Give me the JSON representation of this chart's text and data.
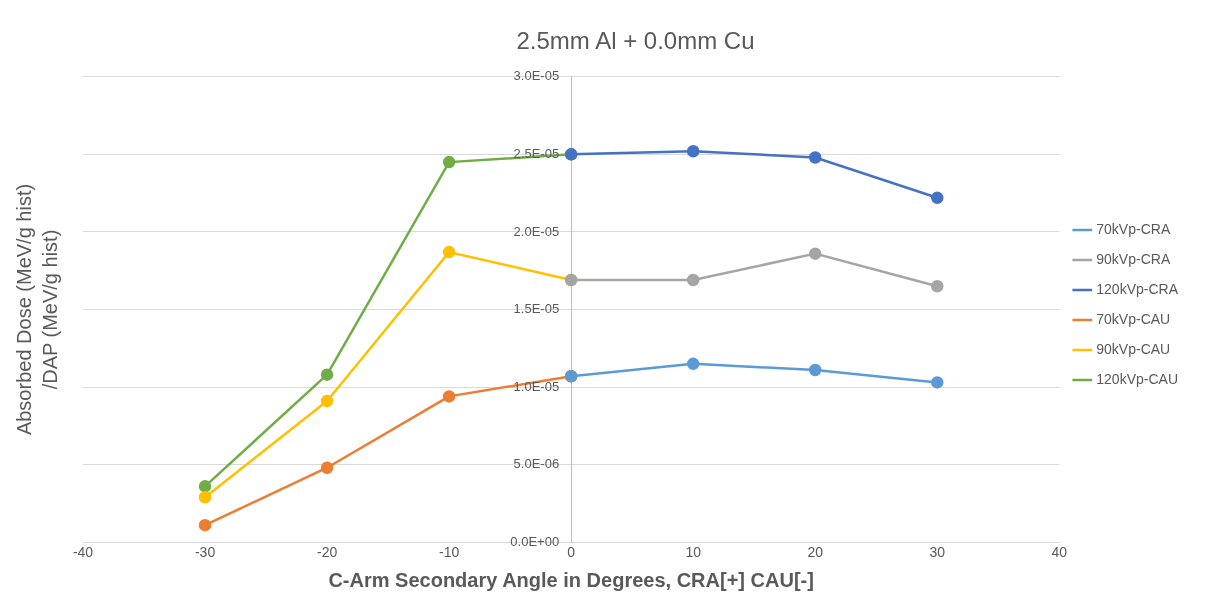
{
  "chart_data": {
    "type": "line",
    "title": "2.5mm Al + 0.0mm Cu",
    "xlabel": "C-Arm Secondary Angle in Degrees, CRA[+] CAU[-]",
    "ylabel": "Absorbed Dose (MeV/g hist)\n/DAP (MeV/g hist)",
    "series": [
      {
        "name": "70kVp-CRA",
        "color": "#5b9bd5",
        "x": [
          0,
          10,
          20,
          30
        ],
        "values": [
          1.07e-05,
          1.15e-05,
          1.11e-05,
          1.03e-05
        ]
      },
      {
        "name": "90kVp-CRA",
        "color": "#a5a5a5",
        "x": [
          0,
          10,
          20,
          30
        ],
        "values": [
          1.69e-05,
          1.69e-05,
          1.86e-05,
          1.65e-05
        ]
      },
      {
        "name": "120kVp-CRA",
        "color": "#4472c4",
        "x": [
          0,
          10,
          20,
          30
        ],
        "values": [
          2.5e-05,
          2.52e-05,
          2.48e-05,
          2.22e-05
        ]
      },
      {
        "name": "70kVp-CAU",
        "color": "#ed7d31",
        "x": [
          -30,
          -20,
          -10,
          0
        ],
        "values": [
          1.1e-06,
          4.8e-06,
          9.4e-06,
          1.07e-05
        ]
      },
      {
        "name": "90kVp-CAU",
        "color": "#ffc000",
        "x": [
          -30,
          -20,
          -10,
          0
        ],
        "values": [
          2.9e-06,
          9.1e-06,
          1.87e-05,
          1.69e-05
        ]
      },
      {
        "name": "120kVp-CAU",
        "color": "#70ad47",
        "x": [
          -30,
          -20,
          -10,
          0
        ],
        "values": [
          3.6e-06,
          1.08e-05,
          2.45e-05,
          2.5e-05
        ]
      }
    ],
    "xlim": [
      -40,
      40
    ],
    "xticks": [
      -40,
      -30,
      -20,
      -10,
      0,
      10,
      20,
      30,
      40
    ],
    "ylim": [
      0,
      3e-05
    ],
    "yticks": [
      {
        "value": 0,
        "label": "0.0E+00"
      },
      {
        "value": 5e-06,
        "label": "5.0E-06"
      },
      {
        "value": 1e-05,
        "label": "1.0E-05"
      },
      {
        "value": 1.5e-05,
        "label": "1.5E-05"
      },
      {
        "value": 2e-05,
        "label": "2.0E-05"
      },
      {
        "value": 2.5e-05,
        "label": "2.5E-05"
      },
      {
        "value": 3e-05,
        "label": "3.0E-05"
      }
    ],
    "grid": "y",
    "legend": "right",
    "marker": "circle",
    "line_style": "solid"
  }
}
